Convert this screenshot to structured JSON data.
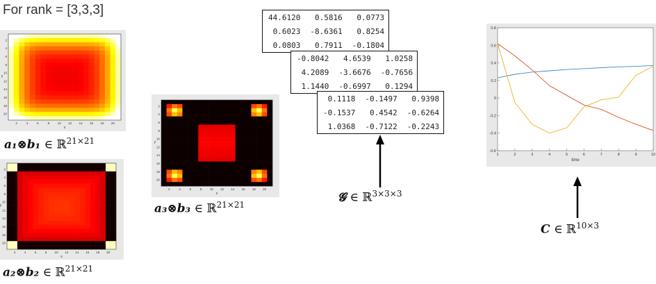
{
  "title": "For rank = [3,3,3]",
  "labels": {
    "a1b1": {
      "sym": "a₁⊗b₁",
      "space": "∈ ℝ",
      "sup": "21×21"
    },
    "a2b2": {
      "sym": "a₂⊗b₂",
      "space": "∈ ℝ",
      "sup": "21×21"
    },
    "a3b3": {
      "sym": "a₃⊗b₃",
      "space": "∈ ℝ",
      "sup": "21×21"
    },
    "G": {
      "sym": "𝓖",
      "space": "∈ ℝ",
      "sup": "3×3×3"
    },
    "C": {
      "sym": "C",
      "space": "∈ ℝ",
      "sup": "10×3"
    }
  },
  "core_tensor": [
    [
      [
        "44.6120",
        "0.5816",
        "0.0773"
      ],
      [
        "0.6023",
        "-8.6361",
        "0.8254"
      ],
      [
        "0.0803",
        "0.7911",
        "-0.1804"
      ]
    ],
    [
      [
        "-0.8042",
        "4.6539",
        "1.0258"
      ],
      [
        "4.2089",
        "-3.6676",
        "-0.7656"
      ],
      [
        "1.1440",
        "-0.6997",
        "0.1294"
      ]
    ],
    [
      [
        "0.1118",
        "-0.1497",
        "0.9398"
      ],
      [
        "-0.1537",
        "0.4542",
        "-0.6264"
      ],
      [
        "1.0368",
        "-0.7122",
        "-0.2243"
      ]
    ]
  ],
  "heatmaps": {
    "x_ticks": [
      "2",
      "4",
      "6",
      "8",
      "10",
      "12",
      "14",
      "16",
      "18",
      "20"
    ],
    "y_ticks": [
      "2",
      "4",
      "6",
      "8",
      "10",
      "12",
      "14",
      "16",
      "18",
      "20"
    ],
    "xlabel": "x",
    "ylabel": "y"
  },
  "chart_data": {
    "type": "line",
    "x": [
      1,
      2,
      3,
      4,
      5,
      6,
      7,
      8,
      9,
      10
    ],
    "xlabel": "time",
    "ylabel": "",
    "xlim": [
      1,
      10
    ],
    "ylim": [
      -0.6,
      0.8
    ],
    "y_ticks": [
      -0.6,
      -0.4,
      -0.2,
      0,
      0.2,
      0.4,
      0.6,
      0.8
    ],
    "series": [
      {
        "color": "#3b8bc2",
        "values": [
          0.23,
          0.27,
          0.295,
          0.31,
          0.325,
          0.335,
          0.345,
          0.355,
          0.36,
          0.37
        ]
      },
      {
        "color": "#d95319",
        "values": [
          0.62,
          0.48,
          0.32,
          0.14,
          0.03,
          -0.08,
          -0.13,
          -0.22,
          -0.3,
          -0.37
        ]
      },
      {
        "color": "#edb120",
        "values": [
          0.62,
          -0.05,
          -0.3,
          -0.4,
          -0.34,
          -0.1,
          -0.02,
          0.01,
          0.26,
          0.36
        ]
      }
    ],
    "grid": false
  }
}
